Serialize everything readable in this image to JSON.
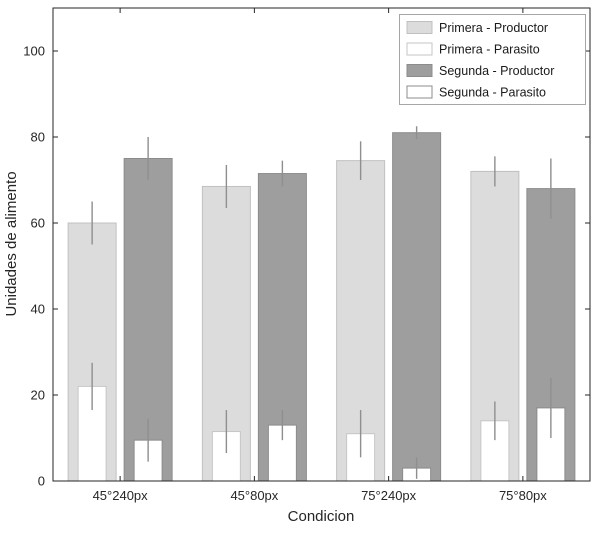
{
  "chart_data": {
    "type": "bar",
    "title": "",
    "xlabel": "Condicion",
    "ylabel": "Unidades de alimento",
    "ylim": [
      0,
      110
    ],
    "yticks": [
      0,
      20,
      40,
      60,
      80,
      100
    ],
    "categories": [
      "45°240px",
      "45°80px",
      "75°240px",
      "75°80px"
    ],
    "series": [
      {
        "name": "Primera - Productor",
        "group": "primera",
        "overlay": false,
        "values": [
          60,
          68.5,
          74.5,
          72
        ],
        "errors": [
          5,
          5,
          4.5,
          3.5
        ],
        "fill": "#dcdcdc",
        "stroke": "#c0c0c0"
      },
      {
        "name": "Primera - Parasito",
        "group": "primera",
        "overlay": true,
        "values": [
          22,
          11.5,
          11,
          14
        ],
        "errors": [
          5.5,
          5,
          5.5,
          4.5
        ],
        "fill": "#ffffff",
        "stroke": "#c6c6c6"
      },
      {
        "name": "Segunda - Productor",
        "group": "segunda",
        "overlay": false,
        "values": [
          75,
          71.5,
          81,
          68
        ],
        "errors": [
          5,
          3,
          1.5,
          7
        ],
        "fill": "#9e9e9e",
        "stroke": "#8c8c8c"
      },
      {
        "name": "Segunda - Parasito",
        "group": "segunda",
        "overlay": true,
        "values": [
          9.5,
          13,
          3,
          17
        ],
        "errors": [
          5,
          3.5,
          2.5,
          7
        ],
        "fill": "#ffffff",
        "stroke": "#8c8c8c"
      }
    ],
    "error_color": "#8f8f8f",
    "axis_color": "#262626",
    "legend_border": "#a6a6a6",
    "legend_position": "top-right",
    "grid": false
  }
}
